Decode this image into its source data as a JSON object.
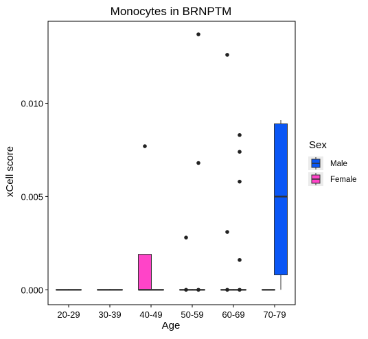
{
  "chart_data": {
    "type": "boxplot",
    "title": "Monocytes in BRNPTM",
    "xlabel": "Age",
    "ylabel": "xCell score",
    "ylim": [
      -0.0008,
      0.0144
    ],
    "yticks": [
      0.0,
      0.005,
      0.01
    ],
    "ytick_labels": [
      "0.000",
      "0.005",
      "0.010"
    ],
    "categories": [
      "20-29",
      "30-39",
      "40-49",
      "50-59",
      "60-69",
      "70-79"
    ],
    "grid": false,
    "legend": {
      "title": "Sex",
      "position": "right",
      "entries": [
        {
          "label": "Male",
          "color": "#0A56F5"
        },
        {
          "label": "Female",
          "color": "#FF44C8"
        }
      ]
    },
    "series": [
      {
        "name": "Male",
        "color": "#0A56F5",
        "boxes": [
          {
            "category": "20-29",
            "min": 0.0,
            "q1": 0.0,
            "median": 0.0,
            "q3": 0.0,
            "max": 0.0,
            "outliers": []
          },
          {
            "category": "30-39",
            "min": 0.0,
            "q1": 0.0,
            "median": 0.0,
            "q3": 0.0,
            "max": 0.0,
            "outliers": []
          },
          {
            "category": "40-49",
            "min": 0.0,
            "q1": 0.0,
            "median": 0.0,
            "q3": 0.0,
            "max": 0.0,
            "outliers": []
          },
          {
            "category": "50-59",
            "min": 0.0,
            "q1": 0.0,
            "median": 0.0,
            "q3": 0.0,
            "max": 0.0,
            "outliers": [
              0.0137,
              0.0068,
              0.0
            ]
          },
          {
            "category": "60-69",
            "min": 0.0,
            "q1": 0.0,
            "median": 0.0,
            "q3": 0.0,
            "max": 0.0,
            "outliers": [
              0.0083,
              0.0074,
              0.0058,
              0.0016,
              0.0
            ]
          },
          {
            "category": "70-79",
            "min": 0.0,
            "q1": 0.0008,
            "median": 0.005,
            "q3": 0.0089,
            "max": 0.0091,
            "outliers": []
          }
        ]
      },
      {
        "name": "Female",
        "color": "#FF44C8",
        "boxes": [
          {
            "category": "20-29",
            "min": 0.0,
            "q1": 0.0,
            "median": 0.0,
            "q3": 0.0,
            "max": 0.0,
            "outliers": []
          },
          {
            "category": "30-39",
            "min": 0.0,
            "q1": 0.0,
            "median": 0.0,
            "q3": 0.0,
            "max": 0.0,
            "outliers": []
          },
          {
            "category": "40-49",
            "min": 0.0,
            "q1": 0.0,
            "median": 0.0,
            "q3": 0.0019,
            "max": 0.0019,
            "outliers": [
              0.0077
            ]
          },
          {
            "category": "50-59",
            "min": 0.0,
            "q1": 0.0,
            "median": 0.0,
            "q3": 0.0,
            "max": 0.0,
            "outliers": [
              0.0028,
              0.0
            ]
          },
          {
            "category": "60-69",
            "min": 0.0,
            "q1": 0.0,
            "median": 0.0,
            "q3": 0.0,
            "max": 0.0,
            "outliers": [
              0.0126,
              0.0031,
              0.0
            ]
          },
          {
            "category": "70-79",
            "min": 0.0,
            "q1": 0.0,
            "median": 0.0,
            "q3": 0.0,
            "max": 0.0,
            "outliers": []
          }
        ]
      }
    ]
  }
}
